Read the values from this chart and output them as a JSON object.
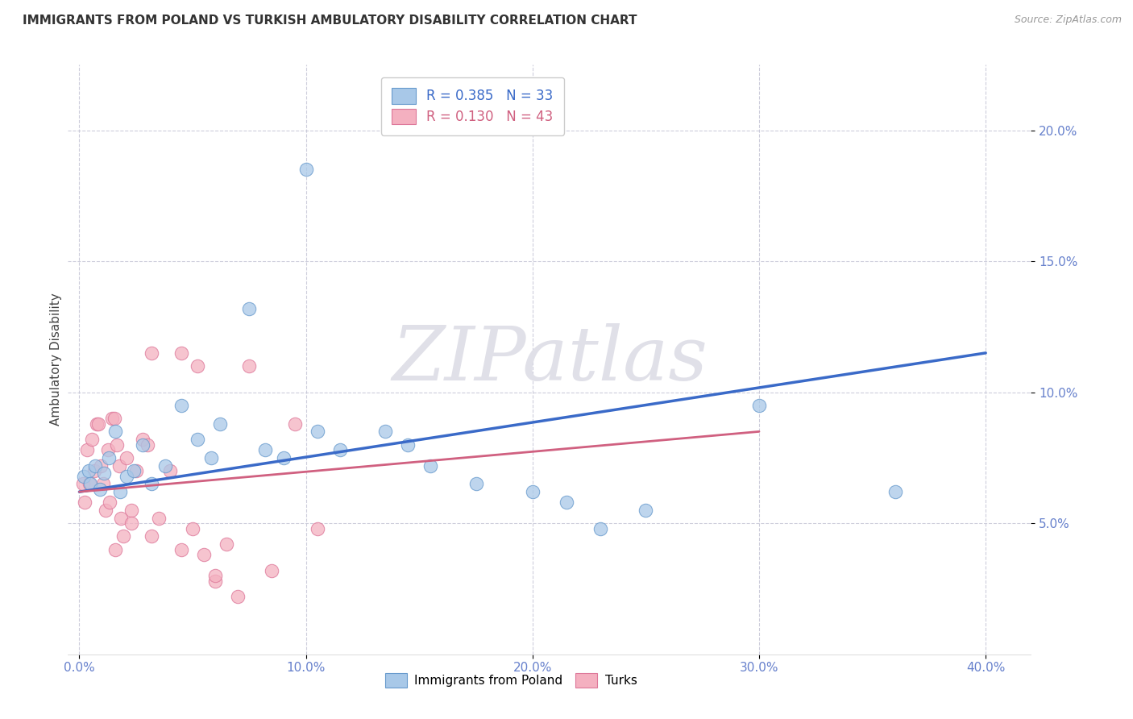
{
  "title": "IMMIGRANTS FROM POLAND VS TURKISH AMBULATORY DISABILITY CORRELATION CHART",
  "source": "Source: ZipAtlas.com",
  "xlabel_ticks": [
    "0.0%",
    "10.0%",
    "20.0%",
    "30.0%",
    "40.0%"
  ],
  "xlabel_tick_vals": [
    0.0,
    10.0,
    20.0,
    30.0,
    40.0
  ],
  "ylabel": "Ambulatory Disability",
  "ylabel_ticks": [
    "5.0%",
    "10.0%",
    "15.0%",
    "20.0%"
  ],
  "ylabel_tick_vals": [
    5.0,
    10.0,
    15.0,
    20.0
  ],
  "xlim": [
    -0.5,
    42.0
  ],
  "ylim": [
    0.0,
    22.5
  ],
  "legend_label1": "Immigrants from Poland",
  "legend_label2": "Turks",
  "blue_scatter": [
    [
      0.2,
      6.8
    ],
    [
      0.4,
      7.0
    ],
    [
      0.5,
      6.5
    ],
    [
      0.7,
      7.2
    ],
    [
      0.9,
      6.3
    ],
    [
      1.1,
      6.9
    ],
    [
      1.3,
      7.5
    ],
    [
      1.6,
      8.5
    ],
    [
      1.8,
      6.2
    ],
    [
      2.1,
      6.8
    ],
    [
      2.4,
      7.0
    ],
    [
      2.8,
      8.0
    ],
    [
      3.2,
      6.5
    ],
    [
      3.8,
      7.2
    ],
    [
      4.5,
      9.5
    ],
    [
      5.2,
      8.2
    ],
    [
      5.8,
      7.5
    ],
    [
      6.2,
      8.8
    ],
    [
      7.5,
      13.2
    ],
    [
      8.2,
      7.8
    ],
    [
      9.0,
      7.5
    ],
    [
      10.5,
      8.5
    ],
    [
      11.5,
      7.8
    ],
    [
      13.5,
      8.5
    ],
    [
      14.5,
      8.0
    ],
    [
      15.5,
      7.2
    ],
    [
      17.5,
      6.5
    ],
    [
      20.0,
      6.2
    ],
    [
      21.5,
      5.8
    ],
    [
      23.0,
      4.8
    ],
    [
      25.0,
      5.5
    ],
    [
      30.0,
      9.5
    ],
    [
      36.0,
      6.2
    ],
    [
      10.0,
      18.5
    ]
  ],
  "pink_scatter": [
    [
      0.15,
      6.5
    ],
    [
      0.25,
      5.8
    ],
    [
      0.35,
      7.8
    ],
    [
      0.45,
      6.5
    ],
    [
      0.55,
      8.2
    ],
    [
      0.65,
      7.0
    ],
    [
      0.75,
      8.8
    ],
    [
      0.85,
      8.8
    ],
    [
      0.95,
      7.2
    ],
    [
      1.05,
      6.5
    ],
    [
      1.15,
      5.5
    ],
    [
      1.25,
      7.8
    ],
    [
      1.35,
      5.8
    ],
    [
      1.45,
      9.0
    ],
    [
      1.55,
      9.0
    ],
    [
      1.65,
      8.0
    ],
    [
      1.75,
      7.2
    ],
    [
      1.85,
      5.2
    ],
    [
      1.95,
      4.5
    ],
    [
      2.1,
      7.5
    ],
    [
      2.3,
      5.5
    ],
    [
      2.5,
      7.0
    ],
    [
      2.8,
      8.2
    ],
    [
      3.0,
      8.0
    ],
    [
      3.2,
      11.5
    ],
    [
      3.5,
      5.2
    ],
    [
      4.0,
      7.0
    ],
    [
      4.5,
      11.5
    ],
    [
      5.0,
      4.8
    ],
    [
      5.5,
      3.8
    ],
    [
      6.0,
      2.8
    ],
    [
      6.5,
      4.2
    ],
    [
      7.5,
      11.0
    ],
    [
      8.5,
      3.2
    ],
    [
      9.5,
      8.8
    ],
    [
      10.5,
      4.8
    ],
    [
      1.6,
      4.0
    ],
    [
      2.3,
      5.0
    ],
    [
      3.2,
      4.5
    ],
    [
      5.2,
      11.0
    ],
    [
      7.0,
      2.2
    ],
    [
      4.5,
      4.0
    ],
    [
      6.0,
      3.0
    ]
  ],
  "blue_line_x": [
    0.0,
    40.0
  ],
  "blue_line_y": [
    6.2,
    11.5
  ],
  "pink_line_x": [
    0.0,
    30.0
  ],
  "pink_line_y": [
    6.2,
    8.5
  ],
  "scatter_color_blue": "#a8c8e8",
  "scatter_edge_blue": "#6699cc",
  "scatter_color_pink": "#f4b0c0",
  "scatter_edge_pink": "#dd7799",
  "line_color_blue": "#3a6ac8",
  "line_color_pink": "#d06080",
  "tick_color": "#6680cc",
  "background_color": "#ffffff",
  "grid_color": "#c8c8d8",
  "watermark_text": "ZIPatlas",
  "watermark_color": "#e0e0e8"
}
